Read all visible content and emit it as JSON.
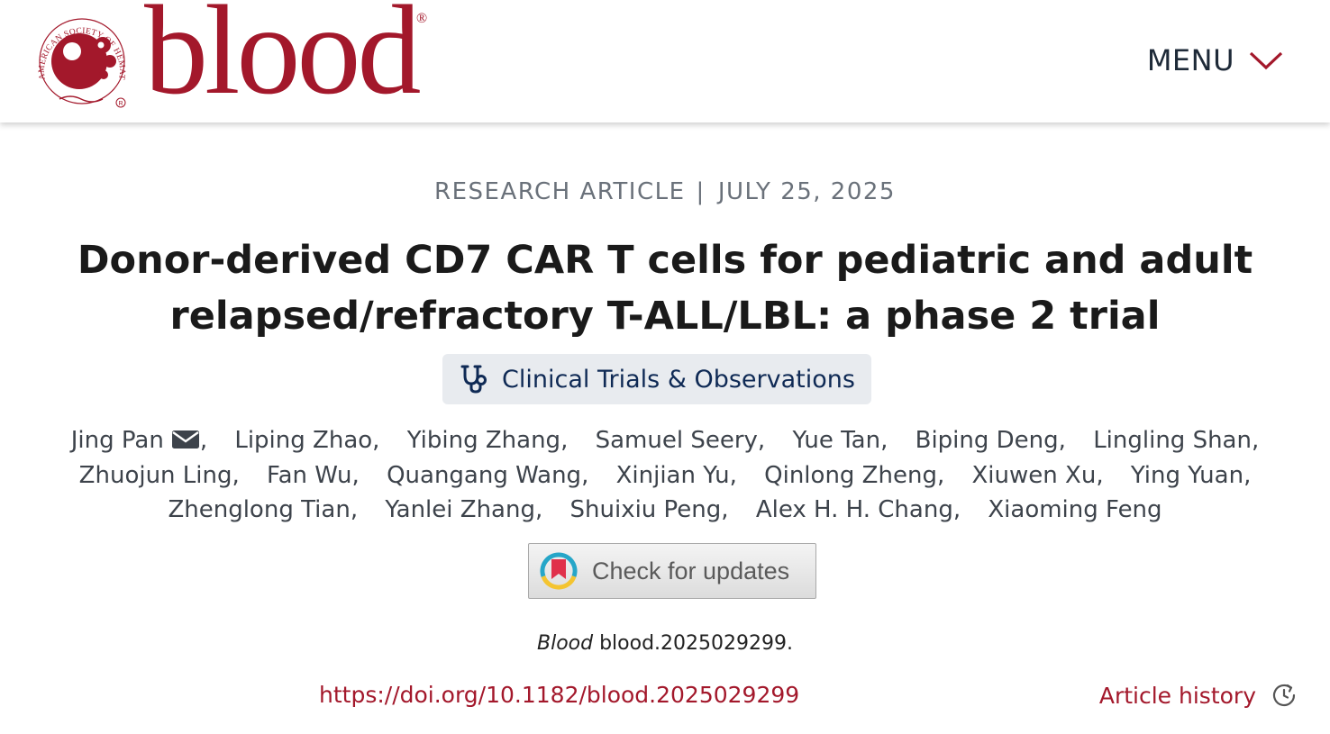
{
  "header": {
    "logo_word": "blood",
    "logo_registered": "®",
    "seal_text": "AMERICAN SOCIETY OF HEMATOLOGY",
    "menu_label": "MENU"
  },
  "article": {
    "type": "RESEARCH ARTICLE",
    "separator": "|",
    "date": "JULY 25, 2025",
    "title": "Donor-derived CD7 CAR T cells for pediatric and adult relapsed/refractory T-ALL/LBL: a phase 2 trial",
    "category": "Clinical Trials & Observations",
    "authors": [
      "Jing Pan",
      "Liping Zhao",
      "Yibing Zhang",
      "Samuel Seery",
      "Yue Tan",
      "Biping Deng",
      "Lingling Shan",
      "Zhuojun Ling",
      "Fan Wu",
      "Quangang Wang",
      "Xinjian Yu",
      "Qinlong Zheng",
      "Xiuwen Xu",
      "Ying Yuan",
      "Zhenglong Tian",
      "Yanlei Zhang",
      "Shuixiu Peng",
      "Alex H. H. Chang",
      "Xiaoming Feng"
    ],
    "check_updates_label": "Check for updates",
    "citation": {
      "journal": "Blood",
      "reference": "blood.2025029299."
    },
    "doi": "https://doi.org/10.1182/blood.2025029299",
    "history_label": "Article history"
  },
  "colors": {
    "brand": "#a3182b",
    "pill_bg": "#e8ebef",
    "pill_text": "#0f2a55",
    "meta_text": "#6a717a"
  },
  "icons": {
    "menu": "chevron-down-icon",
    "category": "stethoscope-icon",
    "author_contact": "mail-icon",
    "updates": "crossmark-icon",
    "history": "history-clock-icon"
  }
}
